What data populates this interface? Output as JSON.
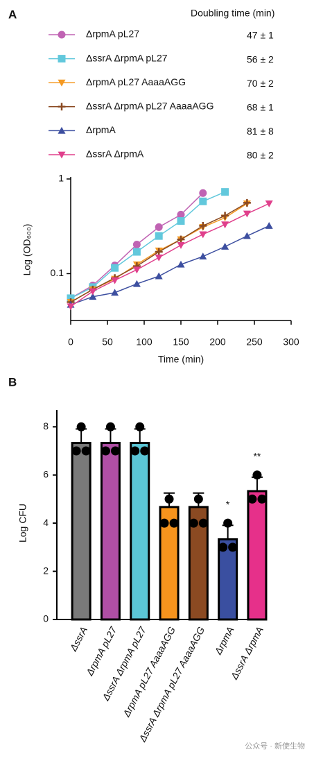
{
  "chart_data": [
    {
      "type": "line",
      "panel_label": "A",
      "log_y": true,
      "legend_header": "Doubling time (min)",
      "x_label": "Time (min)",
      "y_label": "Log (OD₆₀₀)",
      "x": [
        0,
        30,
        60,
        90,
        120,
        150,
        180,
        210,
        240,
        270
      ],
      "xlim": [
        0,
        300
      ],
      "xticks": [
        0,
        50,
        100,
        150,
        200,
        250,
        300
      ],
      "ylim": [
        0.032,
        1
      ],
      "yticks": [
        0.1,
        1
      ],
      "series": [
        {
          "name": "ΔrpmA  pL27",
          "color": "#c063b3",
          "marker": "circle",
          "doubling_time": "47 ± 1",
          "values": [
            0.055,
            0.075,
            0.122,
            0.203,
            0.31,
            0.42,
            0.71,
            null,
            null,
            null
          ]
        },
        {
          "name": "ΔssrA ΔrpmA  pL27",
          "color": "#62c8dc",
          "marker": "square",
          "doubling_time": "56 ± 2",
          "values": [
            0.055,
            0.072,
            0.115,
            0.17,
            0.25,
            0.36,
            0.58,
            0.73,
            null,
            null
          ]
        },
        {
          "name": "ΔrpmA  pL27 AaaaAGG",
          "color": "#f59a23",
          "marker": "triangle-down",
          "doubling_time": "70 ± 2",
          "values": [
            0.05,
            0.068,
            0.088,
            0.125,
            0.175,
            0.23,
            0.31,
            0.39,
            0.55,
            null
          ]
        },
        {
          "name": "ΔssrA  ΔrpmA pL27 AaaaAGG",
          "color": "#8b4a22",
          "marker": "plus",
          "doubling_time": "68 ± 1",
          "values": [
            0.05,
            0.068,
            0.09,
            0.12,
            0.17,
            0.23,
            0.32,
            0.41,
            0.56,
            null
          ]
        },
        {
          "name": "ΔrpmA",
          "color": "#3d4fa0",
          "marker": "triangle-up",
          "doubling_time": "81 ± 8",
          "values": [
            0.047,
            0.057,
            0.063,
            0.078,
            0.094,
            0.125,
            0.152,
            0.193,
            0.25,
            0.32
          ]
        },
        {
          "name": "ΔssrA ΔrpmA",
          "color": "#e0408c",
          "marker": "triangle-down",
          "doubling_time": "80 ± 2",
          "values": [
            0.045,
            0.065,
            0.085,
            0.11,
            0.148,
            0.2,
            0.26,
            0.33,
            0.43,
            0.55
          ]
        }
      ]
    },
    {
      "type": "bar",
      "panel_label": "B",
      "y_label": "Log CFU",
      "categories": [
        "ΔssrA",
        "ΔrpmA pL27",
        "ΔssrA ΔrpmA  pL27",
        "ΔrpmA pL27 AaaaAGG",
        "ΔssrA ΔrpmA  pL27 AaaaAGG",
        "ΔrpmA",
        "ΔssrA ΔrpmA"
      ],
      "values": [
        7.33,
        7.33,
        7.33,
        4.67,
        4.67,
        3.33,
        5.33
      ],
      "errors": [
        0.58,
        0.58,
        0.58,
        0.58,
        0.58,
        0.58,
        0.58
      ],
      "points": [
        [
          8,
          7,
          7
        ],
        [
          8,
          7,
          7
        ],
        [
          8,
          7,
          7
        ],
        [
          5,
          4,
          4
        ],
        [
          5,
          4,
          4
        ],
        [
          4,
          3,
          3
        ],
        [
          6,
          5,
          5
        ]
      ],
      "colors": [
        "#7a7a7a",
        "#b04fa5",
        "#5bc6d6",
        "#f7941d",
        "#8b4a22",
        "#3a4fa0",
        "#e6308a"
      ],
      "ylim": [
        0,
        8.7
      ],
      "yticks": [
        0,
        2,
        4,
        6,
        8
      ],
      "annotations": [
        {
          "category": "ΔrpmA",
          "text": "*"
        },
        {
          "category": "ΔssrA ΔrpmA",
          "text": "**"
        }
      ]
    }
  ],
  "watermark": "公众号 · 新使生物"
}
